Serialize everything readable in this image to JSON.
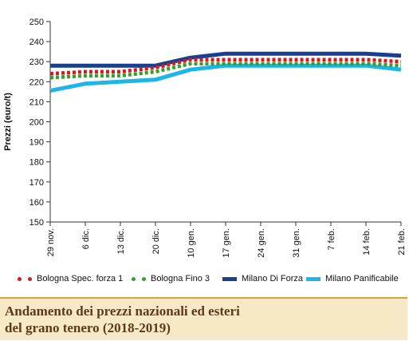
{
  "chart_data": {
    "type": "line",
    "title": "",
    "xlabel": "",
    "ylabel": "Prezzi (euro/t)",
    "ylim": [
      150,
      250
    ],
    "yticks": [
      150,
      160,
      170,
      180,
      190,
      200,
      210,
      220,
      230,
      240,
      250
    ],
    "grid": false,
    "legend_position": "bottom",
    "categories": [
      "29 nov.",
      "6 dic.",
      "13 dic.",
      "20 dic.",
      "10 gen.",
      "17 gen.",
      "24 gen.",
      "31 gen.",
      "7 feb.",
      "14 feb.",
      "21 feb."
    ],
    "series": [
      {
        "name": "Bologna Spec. forza 1",
        "color": "#d7191c",
        "style": "dotted",
        "values": [
          224,
          225,
          225,
          227,
          231,
          231,
          231,
          231,
          231,
          231,
          230
        ]
      },
      {
        "name": "Bologna Fino 3",
        "color": "#33a02c",
        "style": "dotted",
        "values": [
          222,
          223,
          223,
          225,
          229,
          229,
          229,
          229,
          229,
          229,
          228
        ]
      },
      {
        "name": "Milano Di Forza",
        "color": "#17418f",
        "style": "solid",
        "values": [
          228,
          228,
          228,
          228,
          232,
          234,
          234,
          234,
          234,
          234,
          233
        ]
      },
      {
        "name": "Milano Panificabile",
        "color": "#1fb4e6",
        "style": "solid",
        "values": [
          215.5,
          219,
          220,
          221,
          226,
          228,
          228,
          228,
          228,
          228,
          226
        ]
      }
    ]
  },
  "caption": {
    "line1": "Andamento dei prezzi nazionali ed esteri",
    "line2": "del grano tenero (2018-2019)"
  }
}
